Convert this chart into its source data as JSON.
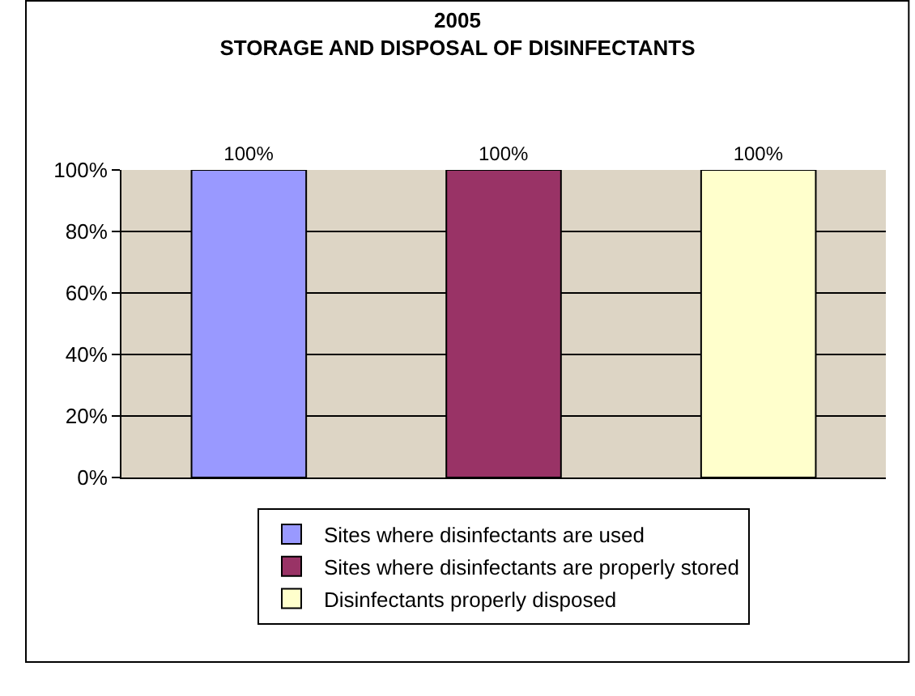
{
  "chart_data": {
    "type": "bar",
    "title": "2005\nSTORAGE AND DISPOSAL OF DISINFECTANTS",
    "categories": [
      null,
      null,
      null
    ],
    "series": [
      {
        "name": "Sites where disinfectants are used",
        "color": "#9999ff",
        "values": [
          100,
          null,
          null
        ],
        "value_labels": [
          "100%",
          null,
          null
        ]
      },
      {
        "name": "Sites where disinfectants are properly stored",
        "color": "#993366",
        "values": [
          null,
          100,
          null
        ],
        "value_labels": [
          null,
          "100%",
          null
        ]
      },
      {
        "name": "Disinfectants properly disposed",
        "color": "#ffffcc",
        "values": [
          null,
          null,
          100
        ],
        "value_labels": [
          null,
          null,
          "100%"
        ]
      }
    ],
    "ylim": [
      0,
      100
    ],
    "yticks": [
      {
        "value": 0,
        "label": "0%"
      },
      {
        "value": 20,
        "label": "20%"
      },
      {
        "value": 40,
        "label": "40%"
      },
      {
        "value": 60,
        "label": "60%"
      },
      {
        "value": 80,
        "label": "80%"
      },
      {
        "value": 100,
        "label": "100%"
      }
    ],
    "grid": "y",
    "legend": "bottom",
    "tick_labels": "y"
  }
}
